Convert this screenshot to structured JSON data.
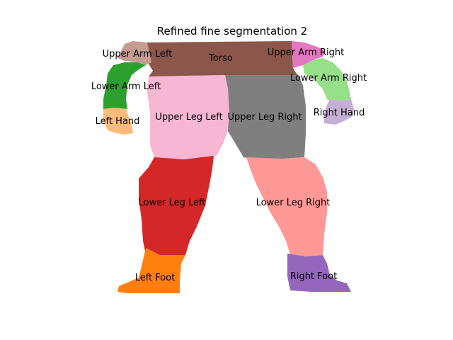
{
  "figure": {
    "title": "Refined fine segmentation 2"
  },
  "parts": {
    "torso": {
      "label": "Torso",
      "color": "#8c564b"
    },
    "upper_arm_left": {
      "label": "Upper Arm Left",
      "color": "#c49c94"
    },
    "upper_arm_right": {
      "label": "Upper Arm Right",
      "color": "#e377c2"
    },
    "lower_arm_left": {
      "label": "Lower Arm Left",
      "color": "#2ca02c"
    },
    "lower_arm_right": {
      "label": "Lower Arm Right",
      "color": "#98df8a"
    },
    "left_hand": {
      "label": "Left Hand",
      "color": "#ffbb78"
    },
    "right_hand": {
      "label": "Right Hand",
      "color": "#c5b0d5"
    },
    "upper_leg_left": {
      "label": "Upper Leg Left",
      "color": "#f7b6d2"
    },
    "upper_leg_right": {
      "label": "Upper Leg Right",
      "color": "#7f7f7f"
    },
    "lower_leg_left": {
      "label": "Lower Leg Left",
      "color": "#d62728"
    },
    "lower_leg_right": {
      "label": "Lower Leg Right",
      "color": "#ff9896"
    },
    "left_foot": {
      "label": "Left Foot",
      "color": "#ff7f0e"
    },
    "right_foot": {
      "label": "Right Foot",
      "color": "#9467bd"
    }
  }
}
